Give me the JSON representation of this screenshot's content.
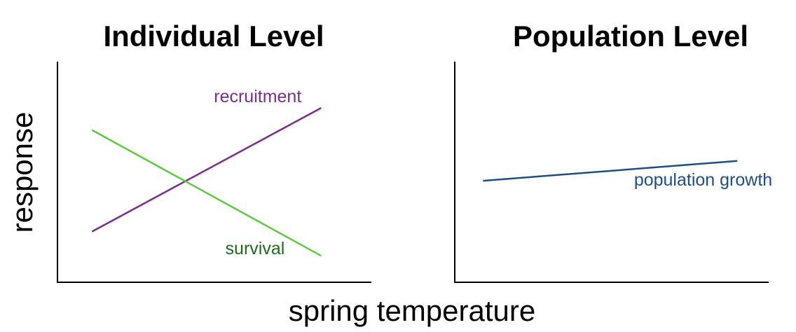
{
  "chart_data": {
    "type": "line",
    "xlabel": "spring temperature",
    "ylabel": "response",
    "grid": false,
    "ticks": false,
    "panels": [
      {
        "title": "Individual Level",
        "xlim": [
          0,
          10
        ],
        "ylim": [
          0,
          10
        ],
        "series": [
          {
            "name": "recruitment",
            "color": "#7b2d8e",
            "label_color": "#7b2d8e",
            "x": [
              1.1,
              8.4
            ],
            "y": [
              2.3,
              7.9
            ]
          },
          {
            "name": "survival",
            "color": "#5dc93f",
            "label_color": "#1e6b1e",
            "x": [
              1.1,
              8.4
            ],
            "y": [
              6.9,
              1.2
            ]
          }
        ]
      },
      {
        "title": "Population Level",
        "xlim": [
          0,
          10
        ],
        "ylim": [
          0,
          10
        ],
        "series": [
          {
            "name": "population growth",
            "color": "#1f4e85",
            "label_color": "#1f4e85",
            "x": [
              0.9,
              9.0
            ],
            "y": [
              4.6,
              5.5
            ]
          }
        ]
      }
    ]
  }
}
